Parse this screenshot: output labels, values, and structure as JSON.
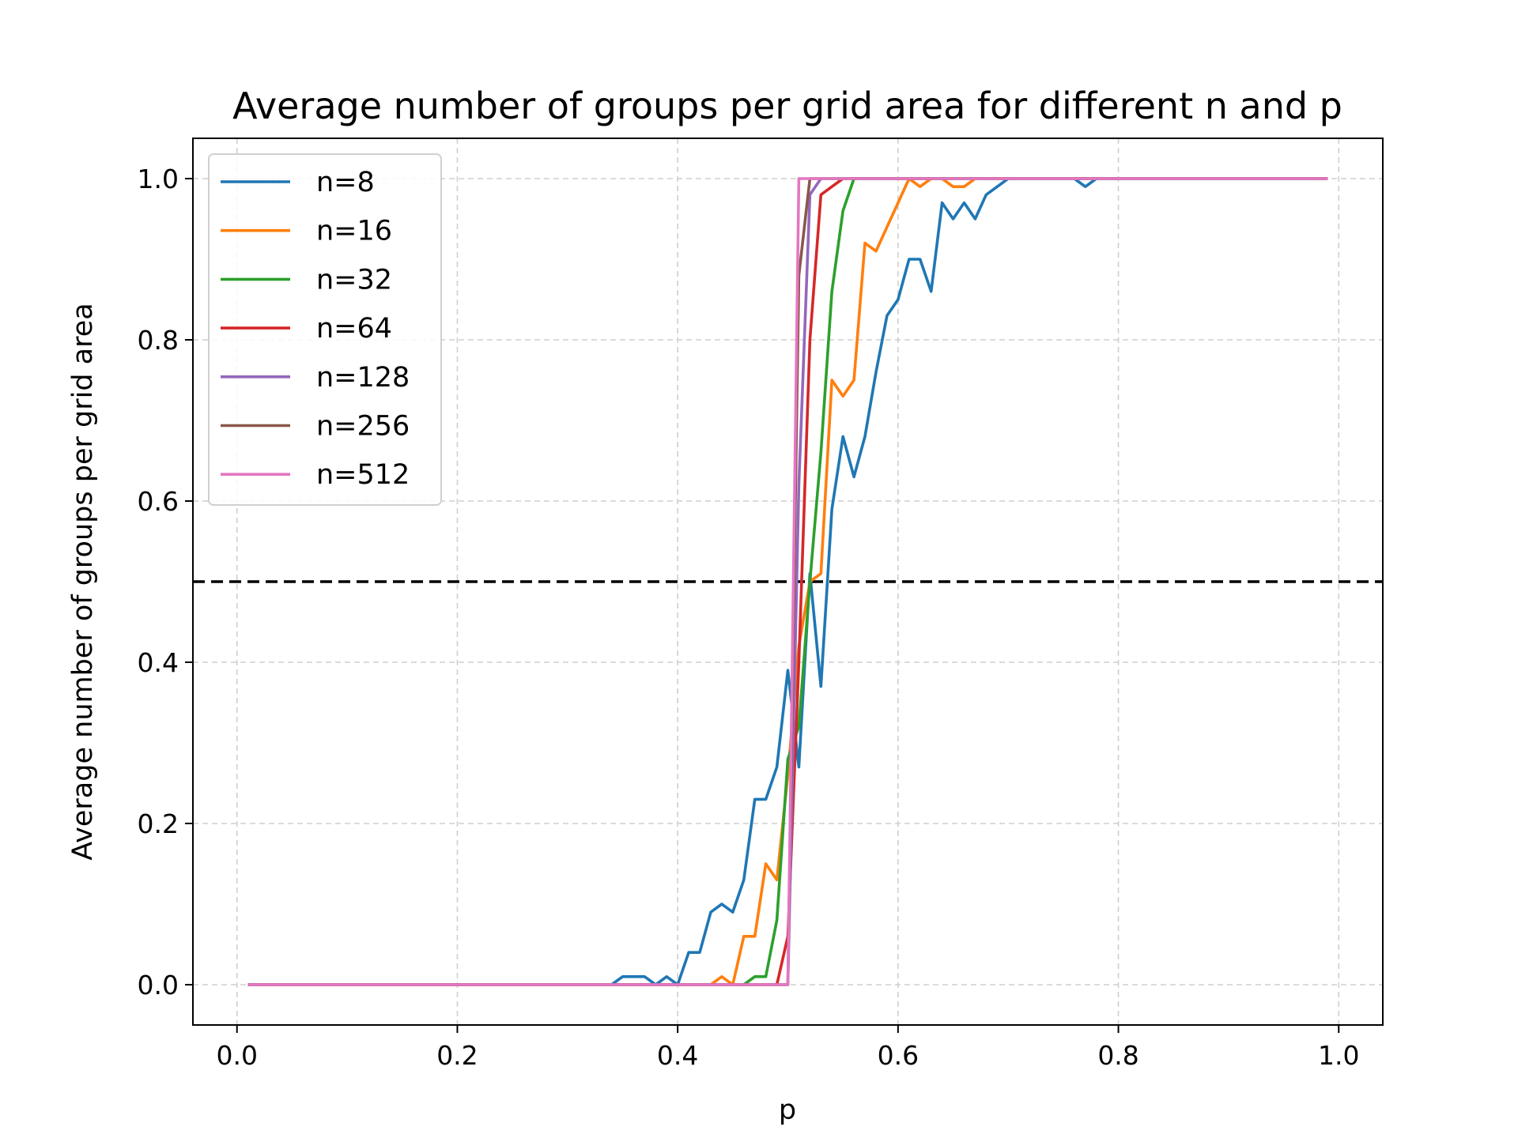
{
  "chart_data": {
    "type": "line",
    "title": "Average number of groups per grid area for different n and p",
    "xlabel": "p",
    "ylabel": "Average number of groups per grid area",
    "xlim": [
      -0.04,
      1.04
    ],
    "ylim": [
      -0.05,
      1.05
    ],
    "xticks": [
      0.0,
      0.2,
      0.4,
      0.6,
      0.8,
      1.0
    ],
    "xtick_labels": [
      "0.0",
      "0.2",
      "0.4",
      "0.6",
      "0.8",
      "1.0"
    ],
    "yticks": [
      0.0,
      0.2,
      0.4,
      0.6,
      0.8,
      1.0
    ],
    "ytick_labels": [
      "0.0",
      "0.2",
      "0.4",
      "0.6",
      "0.8",
      "1.0"
    ],
    "grid": true,
    "legend_position": "upper-left",
    "reference_line": {
      "y": 0.5,
      "style": "dashed",
      "color": "#000000"
    },
    "series": [
      {
        "name": "n=8",
        "color": "#1f77b4",
        "x": [
          0.01,
          0.33,
          0.34,
          0.35,
          0.36,
          0.37,
          0.38,
          0.39,
          0.4,
          0.41,
          0.42,
          0.43,
          0.44,
          0.45,
          0.46,
          0.47,
          0.48,
          0.49,
          0.5,
          0.51,
          0.52,
          0.53,
          0.54,
          0.55,
          0.56,
          0.57,
          0.58,
          0.59,
          0.6,
          0.61,
          0.62,
          0.63,
          0.64,
          0.65,
          0.66,
          0.67,
          0.68,
          0.69,
          0.7,
          0.71,
          0.72,
          0.73,
          0.74,
          0.75,
          0.76,
          0.77,
          0.78,
          0.99
        ],
        "y": [
          0,
          0,
          0,
          0.01,
          0.01,
          0.01,
          0,
          0.01,
          0,
          0.04,
          0.04,
          0.09,
          0.1,
          0.09,
          0.13,
          0.23,
          0.23,
          0.27,
          0.39,
          0.27,
          0.51,
          0.37,
          0.59,
          0.68,
          0.63,
          0.68,
          0.76,
          0.83,
          0.85,
          0.9,
          0.9,
          0.86,
          0.97,
          0.95,
          0.97,
          0.95,
          0.98,
          0.99,
          1.0,
          1.0,
          1.0,
          1.0,
          1.0,
          1.0,
          1.0,
          0.99,
          1.0,
          1.0
        ]
      },
      {
        "name": "n=16",
        "color": "#ff7f0e",
        "x": [
          0.01,
          0.43,
          0.44,
          0.45,
          0.46,
          0.47,
          0.48,
          0.49,
          0.5,
          0.51,
          0.52,
          0.53,
          0.54,
          0.55,
          0.56,
          0.57,
          0.58,
          0.59,
          0.6,
          0.61,
          0.62,
          0.63,
          0.64,
          0.65,
          0.66,
          0.67,
          0.68,
          0.99
        ],
        "y": [
          0,
          0,
          0.01,
          0,
          0.06,
          0.06,
          0.15,
          0.13,
          0.26,
          0.42,
          0.5,
          0.51,
          0.75,
          0.73,
          0.75,
          0.92,
          0.91,
          0.94,
          0.97,
          1.0,
          0.99,
          1.0,
          1.0,
          0.99,
          0.99,
          1.0,
          1.0,
          1.0
        ]
      },
      {
        "name": "n=32",
        "color": "#2ca02c",
        "x": [
          0.01,
          0.46,
          0.47,
          0.48,
          0.49,
          0.5,
          0.51,
          0.52,
          0.53,
          0.54,
          0.55,
          0.56,
          0.57,
          0.99
        ],
        "y": [
          0,
          0,
          0.01,
          0.01,
          0.08,
          0.28,
          0.32,
          0.5,
          0.66,
          0.86,
          0.96,
          1.0,
          1.0,
          1.0
        ]
      },
      {
        "name": "n=64",
        "color": "#d62728",
        "x": [
          0.01,
          0.49,
          0.5,
          0.51,
          0.52,
          0.53,
          0.54,
          0.55,
          0.99
        ],
        "y": [
          0,
          0,
          0.06,
          0.4,
          0.8,
          0.98,
          0.99,
          1.0,
          1.0
        ]
      },
      {
        "name": "n=128",
        "color": "#9467bd",
        "x": [
          0.01,
          0.5,
          0.51,
          0.52,
          0.53,
          0.99
        ],
        "y": [
          0,
          0,
          0.62,
          0.98,
          1.0,
          1.0
        ]
      },
      {
        "name": "n=256",
        "color": "#8c564b",
        "x": [
          0.01,
          0.5,
          0.51,
          0.52,
          0.99
        ],
        "y": [
          0,
          0,
          0.88,
          1.0,
          1.0
        ]
      },
      {
        "name": "n=512",
        "color": "#e377c2",
        "x": [
          0.01,
          0.5,
          0.51,
          0.99
        ],
        "y": [
          0,
          0,
          1.0,
          1.0
        ]
      }
    ]
  }
}
